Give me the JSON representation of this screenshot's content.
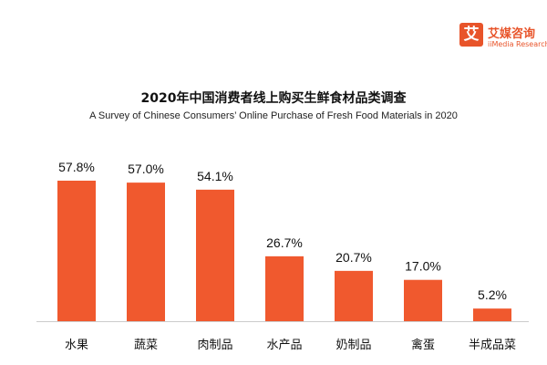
{
  "logo": {
    "mark": "艾",
    "name_cn": "艾媒咨询",
    "name_en": "iiMedia Research"
  },
  "colors": {
    "bar": "#f0592e",
    "brand": "#e8542a",
    "baseline": "#cccccc"
  },
  "chart_data": {
    "type": "bar",
    "title": "2020年中国消费者线上购买生鲜食材品类调查",
    "subtitle": "A Survey of Chinese Consumers’ Online Purchase of Fresh Food Materials in 2020",
    "categories": [
      "水果",
      "蔬菜",
      "肉制品",
      "水产品",
      "奶制品",
      "禽蛋",
      "半成品菜"
    ],
    "values": [
      57.8,
      57.0,
      54.1,
      26.7,
      20.7,
      17.0,
      5.2
    ],
    "value_labels": [
      "57.8%",
      "57.0%",
      "54.1%",
      "26.7%",
      "20.7%",
      "17.0%",
      "5.2%"
    ],
    "unit": "%",
    "ylim": [
      0,
      57.8
    ],
    "grid": false,
    "legend": "none"
  }
}
